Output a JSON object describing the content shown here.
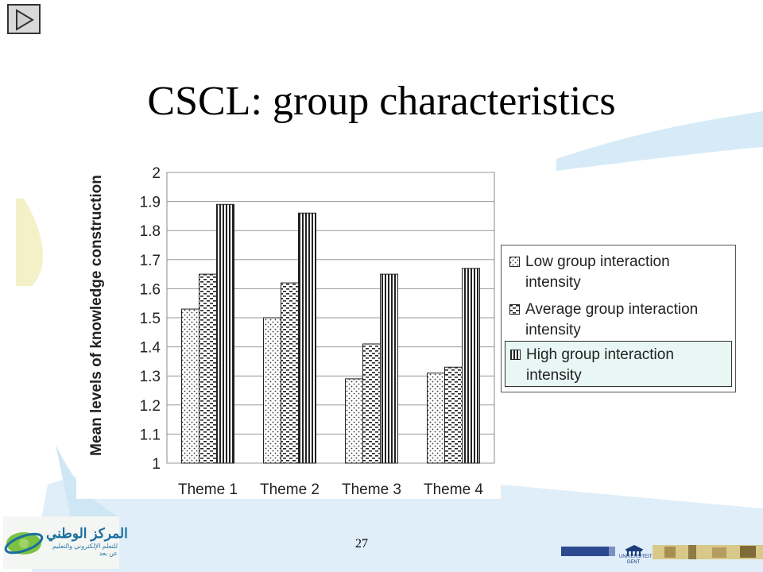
{
  "slide": {
    "title": "CSCL: group characteristics",
    "page_number": "27",
    "nav_icon": "play-forward-icon"
  },
  "logos": {
    "left_title_ar": "المركز الوطني",
    "left_subtitle_ar": "للتعلم الإلكتروني والتعليم عن بعد",
    "right_label": "UNIVERSITEIT GENT"
  },
  "chart_data": {
    "type": "bar",
    "title": "",
    "xlabel": "",
    "ylabel": "Mean levels of knowledge construction",
    "ylim": [
      1,
      2
    ],
    "yticks": [
      "1",
      "1.1",
      "1.2",
      "1.3",
      "1.4",
      "1.5",
      "1.6",
      "1.7",
      "1.8",
      "1.9",
      "2"
    ],
    "categories": [
      "Theme 1",
      "Theme 2",
      "Theme 3",
      "Theme 4"
    ],
    "grid": true,
    "legend_position": "right",
    "series": [
      {
        "name": "Low group interaction intensity",
        "values": [
          1.53,
          1.5,
          1.29,
          1.31
        ],
        "pattern": "dots"
      },
      {
        "name": "Average group interaction intensity",
        "values": [
          1.65,
          1.62,
          1.41,
          1.33
        ],
        "pattern": "dashes"
      },
      {
        "name": "High group interaction intensity",
        "values": [
          1.89,
          1.86,
          1.65,
          1.67
        ],
        "pattern": "vertical-stripes"
      }
    ]
  }
}
